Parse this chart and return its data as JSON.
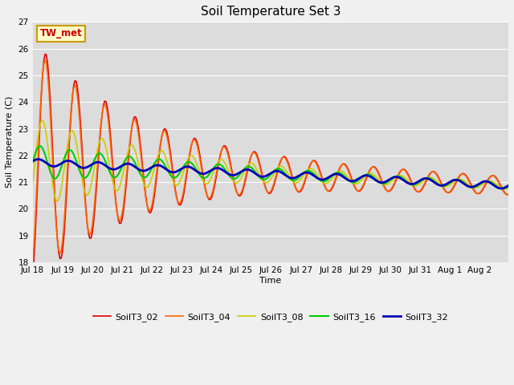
{
  "title": "Soil Temperature Set 3",
  "xlabel": "Time",
  "ylabel": "Soil Temperature (C)",
  "ylim": [
    18.0,
    27.0
  ],
  "yticks": [
    18.0,
    19.0,
    20.0,
    21.0,
    22.0,
    23.0,
    24.0,
    25.0,
    26.0,
    27.0
  ],
  "fig_bg": "#f0f0f0",
  "plot_bg": "#dcdcdc",
  "grid_color": "#ffffff",
  "series_names": [
    "SoilT3_02",
    "SoilT3_04",
    "SoilT3_08",
    "SoilT3_16",
    "SoilT3_32"
  ],
  "series_colors": [
    "#dd0000",
    "#ff6600",
    "#cccc00",
    "#00cc00",
    "#0000bb"
  ],
  "series_lw": [
    1.2,
    1.2,
    1.2,
    1.5,
    2.0
  ],
  "annotation_text": "TW_met",
  "annotation_color": "#cc0000",
  "annotation_bg": "#ffffcc",
  "annotation_border": "#cc9900",
  "day_labels": [
    "Jul 18",
    "Jul 19",
    "Jul 20",
    "Jul 21",
    "Jul 22",
    "Jul 23",
    "Jul 24",
    "Jul 25",
    "Jul 26",
    "Jul 27",
    "Jul 28",
    "Jul 29",
    "Jul 30",
    "Jul 31",
    "Aug 1",
    "Aug 2"
  ],
  "title_fontsize": 11,
  "axis_label_fontsize": 8,
  "tick_fontsize": 7.5
}
